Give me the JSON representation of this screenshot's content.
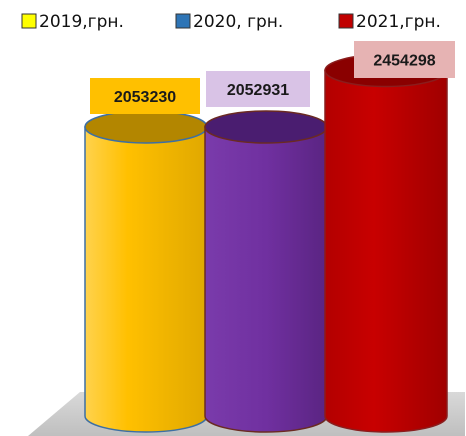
{
  "chart_data": {
    "type": "bar",
    "categories": [
      "2019,грн.",
      "2020, грн.",
      "2021,грн."
    ],
    "values": [
      2053230,
      2052931,
      2454298
    ],
    "data_labels": [
      "2053230",
      "2052931",
      "2454298"
    ],
    "title": "",
    "xlabel": "",
    "ylabel": "",
    "ylim": [
      0,
      2600000
    ],
    "grid": false,
    "legend_position": "top",
    "series_colors": [
      "#ffc000",
      "#7030a0",
      "#c00000"
    ],
    "legend_swatch_colors": [
      "#ffff00",
      "#2e75b6",
      "#c00000"
    ],
    "top_colors": [
      "#b38600",
      "#4a1d70",
      "#8a0000"
    ],
    "label_box_colors": [
      "#ffc000",
      "#d9c3e6",
      "#e6b3b3"
    ]
  }
}
